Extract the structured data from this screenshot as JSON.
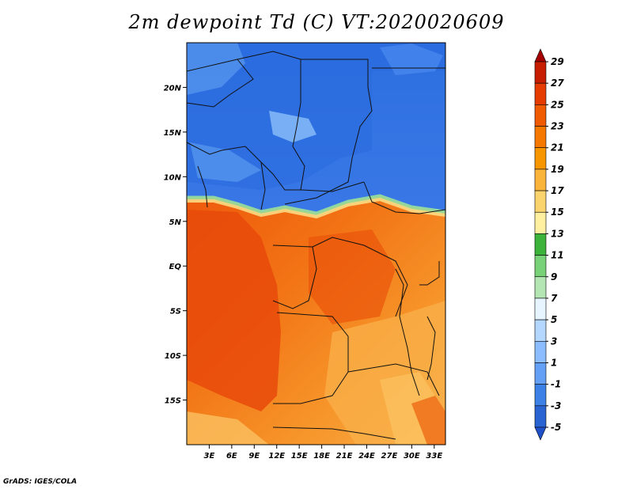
{
  "title": "2m dewpoint Td (C) VT:2020020609",
  "credit": "GrADS: IGES/COLA",
  "map": {
    "lat_ticks": [
      {
        "value": 20,
        "label": "20N"
      },
      {
        "value": 15,
        "label": "15N"
      },
      {
        "value": 10,
        "label": "10N"
      },
      {
        "value": 5,
        "label": "5N"
      },
      {
        "value": 0,
        "label": "EQ"
      },
      {
        "value": -5,
        "label": "5S"
      },
      {
        "value": -10,
        "label": "10S"
      },
      {
        "value": -15,
        "label": "15S"
      }
    ],
    "lon_ticks": [
      {
        "value": 3,
        "label": "3E"
      },
      {
        "value": 6,
        "label": "6E"
      },
      {
        "value": 9,
        "label": "9E"
      },
      {
        "value": 12,
        "label": "12E"
      },
      {
        "value": 15,
        "label": "15E"
      },
      {
        "value": 18,
        "label": "18E"
      },
      {
        "value": 21,
        "label": "21E"
      },
      {
        "value": 24,
        "label": "24E"
      },
      {
        "value": 27,
        "label": "27E"
      },
      {
        "value": 30,
        "label": "30E"
      },
      {
        "value": 33,
        "label": "33E"
      }
    ],
    "lon_range": [
      0,
      34.5
    ],
    "lat_range": [
      -20,
      25
    ]
  },
  "colorbar": {
    "labels": [
      "29",
      "27",
      "25",
      "23",
      "21",
      "19",
      "17",
      "15",
      "13",
      "11",
      "9",
      "7",
      "5",
      "3",
      "1",
      "-1",
      "-3",
      "-5"
    ],
    "colors": [
      "#a50000",
      "#c81e00",
      "#e63c00",
      "#f05a00",
      "#f57800",
      "#f89600",
      "#fab43c",
      "#fcd46e",
      "#fff0a0",
      "#3cb43c",
      "#78d278",
      "#b4e6b4",
      "#e6f5ff",
      "#b4d7ff",
      "#8cbeff",
      "#64a0f5",
      "#3c82e6",
      "#2864d2",
      "#1e50c8"
    ]
  }
}
